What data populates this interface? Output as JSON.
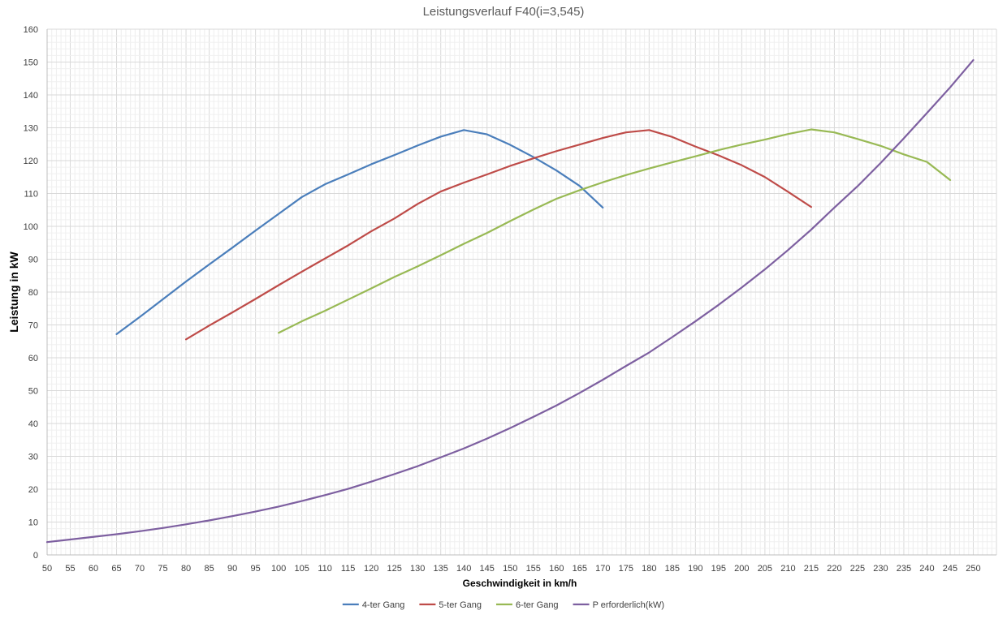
{
  "chart_data": {
    "type": "line",
    "title": "Leistungsverlauf F40(i=3,545)",
    "xlabel": "Geschwindigkeit in km/h",
    "ylabel": "Leistung in kW",
    "xlim": [
      50,
      255
    ],
    "ylim": [
      0,
      160
    ],
    "x_ticks": [
      50,
      55,
      60,
      65,
      70,
      75,
      80,
      85,
      90,
      95,
      100,
      105,
      110,
      115,
      120,
      125,
      130,
      135,
      140,
      145,
      150,
      155,
      160,
      165,
      170,
      175,
      180,
      185,
      190,
      195,
      200,
      205,
      210,
      215,
      220,
      225,
      230,
      235,
      240,
      245,
      250
    ],
    "y_ticks": [
      0,
      10,
      20,
      30,
      40,
      50,
      60,
      70,
      80,
      90,
      100,
      110,
      120,
      130,
      140,
      150,
      160
    ],
    "grid": true,
    "legend_position": "bottom",
    "series": [
      {
        "name": "4-ter Gang",
        "color": "#4a7ebb",
        "points": [
          [
            65,
            67.2
          ],
          [
            70,
            72.4
          ],
          [
            75,
            77.8
          ],
          [
            80,
            83.2
          ],
          [
            85,
            88.4
          ],
          [
            90,
            93.5
          ],
          [
            95,
            98.7
          ],
          [
            100,
            103.8
          ],
          [
            105,
            108.9
          ],
          [
            110,
            112.8
          ],
          [
            115,
            115.8
          ],
          [
            120,
            118.9
          ],
          [
            125,
            121.7
          ],
          [
            130,
            124.6
          ],
          [
            135,
            127.3
          ],
          [
            140,
            129.3
          ],
          [
            145,
            128.0
          ],
          [
            150,
            124.8
          ],
          [
            155,
            121.1
          ],
          [
            160,
            117.0
          ],
          [
            165,
            112.3
          ],
          [
            170,
            105.7
          ]
        ]
      },
      {
        "name": "5-ter Gang",
        "color": "#be4b48",
        "points": [
          [
            80,
            65.6
          ],
          [
            85,
            69.8
          ],
          [
            90,
            73.8
          ],
          [
            95,
            77.9
          ],
          [
            100,
            82.1
          ],
          [
            105,
            86.2
          ],
          [
            110,
            90.2
          ],
          [
            115,
            94.2
          ],
          [
            120,
            98.5
          ],
          [
            125,
            102.4
          ],
          [
            130,
            106.8
          ],
          [
            135,
            110.6
          ],
          [
            140,
            113.3
          ],
          [
            145,
            115.8
          ],
          [
            150,
            118.4
          ],
          [
            155,
            120.7
          ],
          [
            160,
            122.9
          ],
          [
            165,
            124.9
          ],
          [
            170,
            126.9
          ],
          [
            175,
            128.6
          ],
          [
            180,
            129.3
          ],
          [
            185,
            127.2
          ],
          [
            190,
            124.3
          ],
          [
            195,
            121.6
          ],
          [
            200,
            118.6
          ],
          [
            205,
            115.0
          ],
          [
            210,
            110.5
          ],
          [
            215,
            105.9
          ]
        ]
      },
      {
        "name": "6-ter Gang",
        "color": "#98b954",
        "points": [
          [
            100,
            67.6
          ],
          [
            105,
            71.1
          ],
          [
            110,
            74.3
          ],
          [
            115,
            77.7
          ],
          [
            120,
            81.1
          ],
          [
            125,
            84.6
          ],
          [
            130,
            87.8
          ],
          [
            135,
            91.2
          ],
          [
            140,
            94.7
          ],
          [
            145,
            98.0
          ],
          [
            150,
            101.6
          ],
          [
            155,
            105.1
          ],
          [
            160,
            108.4
          ],
          [
            165,
            111.0
          ],
          [
            170,
            113.4
          ],
          [
            175,
            115.6
          ],
          [
            180,
            117.6
          ],
          [
            185,
            119.5
          ],
          [
            190,
            121.3
          ],
          [
            195,
            123.2
          ],
          [
            200,
            124.9
          ],
          [
            205,
            126.4
          ],
          [
            210,
            128.1
          ],
          [
            215,
            129.5
          ],
          [
            220,
            128.6
          ],
          [
            225,
            126.6
          ],
          [
            230,
            124.5
          ],
          [
            235,
            121.9
          ],
          [
            240,
            119.6
          ],
          [
            245,
            114.1
          ]
        ]
      },
      {
        "name": "P erforderlich(kW)",
        "color": "#7d5fa0",
        "points": [
          [
            50,
            3.9
          ],
          [
            55,
            4.7
          ],
          [
            60,
            5.5
          ],
          [
            65,
            6.3
          ],
          [
            70,
            7.2
          ],
          [
            75,
            8.2
          ],
          [
            80,
            9.3
          ],
          [
            85,
            10.5
          ],
          [
            90,
            11.8
          ],
          [
            95,
            13.2
          ],
          [
            100,
            14.7
          ],
          [
            105,
            16.4
          ],
          [
            110,
            18.2
          ],
          [
            115,
            20.1
          ],
          [
            120,
            22.3
          ],
          [
            125,
            24.6
          ],
          [
            130,
            27.0
          ],
          [
            135,
            29.7
          ],
          [
            140,
            32.4
          ],
          [
            145,
            35.4
          ],
          [
            150,
            38.6
          ],
          [
            155,
            42.0
          ],
          [
            160,
            45.5
          ],
          [
            165,
            49.3
          ],
          [
            170,
            53.3
          ],
          [
            175,
            57.5
          ],
          [
            180,
            61.6
          ],
          [
            185,
            66.3
          ],
          [
            190,
            71.1
          ],
          [
            195,
            76.1
          ],
          [
            200,
            81.4
          ],
          [
            205,
            86.9
          ],
          [
            210,
            92.8
          ],
          [
            215,
            99.0
          ],
          [
            220,
            105.7
          ],
          [
            225,
            112.2
          ],
          [
            230,
            119.3
          ],
          [
            235,
            126.8
          ],
          [
            240,
            134.5
          ],
          [
            245,
            142.3
          ],
          [
            250,
            150.6
          ]
        ]
      }
    ]
  }
}
